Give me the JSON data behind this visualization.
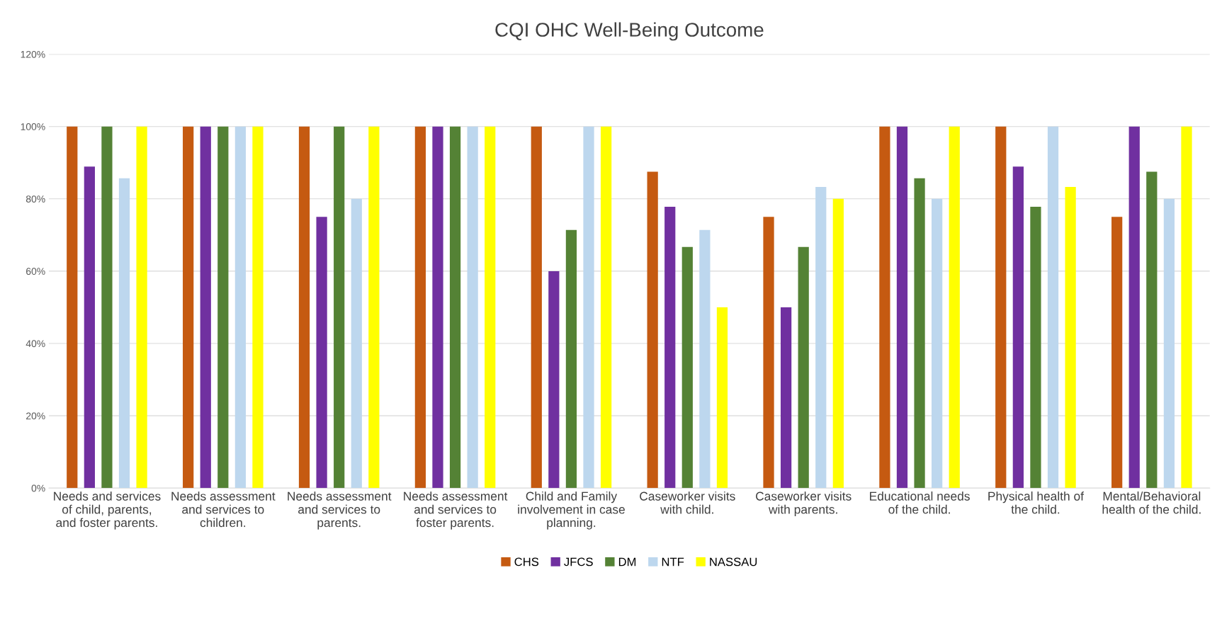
{
  "chart_data": {
    "type": "bar",
    "title": "CQI OHC Well-Being Outcome",
    "categories": [
      "Needs and services\nof child, parents,\nand foster parents.",
      "Needs assessment\nand services to\nchildren.",
      "Needs assessment\nand services to\nparents.",
      "Needs assessment\nand services to\nfoster parents.",
      "Child and Family\ninvolvement in case\nplanning.",
      "Caseworker visits\nwith child.",
      "Caseworker visits\nwith parents.",
      "Educational needs\nof the child.",
      "Physical health of\nthe child.",
      "Mental/Behavioral\nhealth of the child."
    ],
    "series": [
      {
        "name": "CHS",
        "color": "#c55a11",
        "values": [
          100,
          100,
          100,
          100,
          100,
          87.5,
          75,
          100,
          100,
          75
        ]
      },
      {
        "name": "JFCS",
        "color": "#7030a0",
        "values": [
          88.9,
          100,
          75,
          100,
          60,
          77.8,
          50,
          100,
          88.9,
          100
        ]
      },
      {
        "name": "DM",
        "color": "#548235",
        "values": [
          100,
          100,
          100,
          100,
          71.4,
          66.7,
          66.7,
          85.7,
          77.8,
          87.5
        ]
      },
      {
        "name": "NTF",
        "color": "#bdd7ee",
        "values": [
          85.7,
          100,
          80,
          100,
          100,
          71.4,
          83.3,
          80,
          100,
          80
        ]
      },
      {
        "name": "NASSAU",
        "color": "#ffff00",
        "values": [
          100,
          100,
          100,
          100,
          100,
          50,
          80,
          100,
          83.3,
          100
        ]
      }
    ],
    "ylim": [
      0,
      120
    ],
    "yticks": [
      {
        "value": 0,
        "label": "0%"
      },
      {
        "value": 20,
        "label": "20%"
      },
      {
        "value": 40,
        "label": "40%"
      },
      {
        "value": 60,
        "label": "60%"
      },
      {
        "value": 80,
        "label": "80%"
      },
      {
        "value": 100,
        "label": "100%"
      },
      {
        "value": 120,
        "label": "120%"
      }
    ],
    "grid": "y",
    "legend": "bottom"
  }
}
